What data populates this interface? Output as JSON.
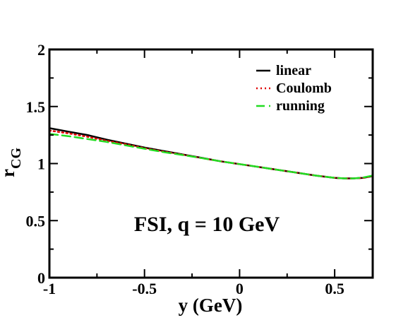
{
  "chart_data": {
    "type": "line",
    "title": "",
    "xlabel": "y (GeV)",
    "ylabel": "r",
    "ylabel_subscript": "CG",
    "xlim": [
      -1,
      0.7
    ],
    "ylim": [
      0,
      2
    ],
    "x_ticks": [
      {
        "value": -1,
        "label": "-1"
      },
      {
        "value": -0.5,
        "label": "-0.5"
      },
      {
        "value": 0,
        "label": "0"
      },
      {
        "value": 0.5,
        "label": "0.5"
      }
    ],
    "y_ticks": [
      {
        "value": 0,
        "label": "0"
      },
      {
        "value": 0.5,
        "label": "0.5"
      },
      {
        "value": 1,
        "label": "1"
      },
      {
        "value": 1.5,
        "label": "1.5"
      },
      {
        "value": 2,
        "label": "2"
      }
    ],
    "grid": false,
    "legend_position": "top-right",
    "annotation": "FSI, q = 10 GeV",
    "series": [
      {
        "name": "linear",
        "color": "#000000",
        "dash": "solid",
        "x": [
          -1,
          -0.9,
          -0.8,
          -0.7,
          -0.6,
          -0.5,
          -0.4,
          -0.3,
          -0.2,
          -0.1,
          0,
          0.1,
          0.2,
          0.3,
          0.4,
          0.5,
          0.55,
          0.6,
          0.65,
          0.7
        ],
        "y": [
          1.31,
          1.28,
          1.25,
          1.21,
          1.175,
          1.14,
          1.11,
          1.08,
          1.05,
          1.02,
          0.995,
          0.97,
          0.945,
          0.92,
          0.895,
          0.875,
          0.87,
          0.87,
          0.875,
          0.89
        ]
      },
      {
        "name": "Coulomb",
        "color": "#e00000",
        "dash": "dotted",
        "x": [
          -1,
          -0.9,
          -0.8,
          -0.7,
          -0.6,
          -0.5,
          -0.4,
          -0.3,
          -0.2,
          -0.1,
          0,
          0.1,
          0.2,
          0.3,
          0.4,
          0.5,
          0.55,
          0.6,
          0.65,
          0.7
        ],
        "y": [
          1.29,
          1.265,
          1.235,
          1.2,
          1.17,
          1.135,
          1.105,
          1.078,
          1.048,
          1.02,
          0.995,
          0.97,
          0.945,
          0.92,
          0.895,
          0.875,
          0.87,
          0.87,
          0.875,
          0.89
        ]
      },
      {
        "name": "running",
        "color": "#22dd22",
        "dash": "dashed",
        "x": [
          -1,
          -0.9,
          -0.8,
          -0.7,
          -0.6,
          -0.5,
          -0.4,
          -0.3,
          -0.2,
          -0.1,
          0,
          0.1,
          0.2,
          0.3,
          0.4,
          0.5,
          0.55,
          0.6,
          0.65,
          0.7
        ],
        "y": [
          1.26,
          1.24,
          1.215,
          1.19,
          1.16,
          1.13,
          1.1,
          1.075,
          1.048,
          1.02,
          0.995,
          0.97,
          0.945,
          0.92,
          0.895,
          0.875,
          0.87,
          0.87,
          0.878,
          0.895
        ]
      }
    ]
  }
}
